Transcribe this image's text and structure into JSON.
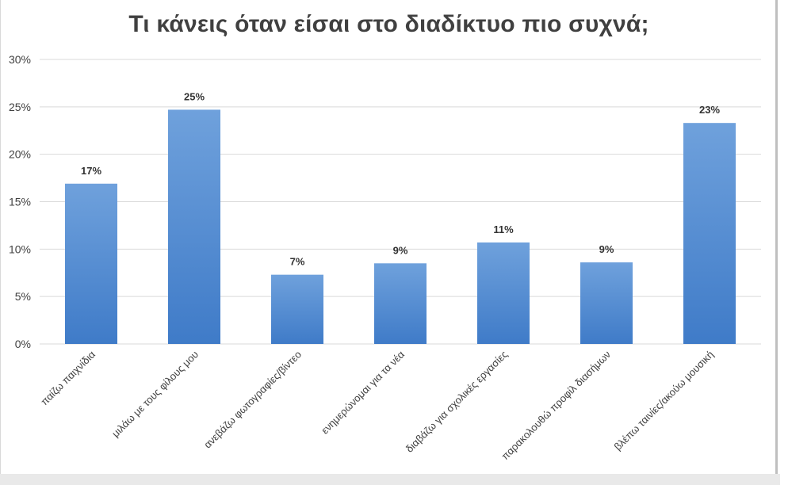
{
  "chart_data": {
    "type": "bar",
    "title": "Τι κάνεις όταν είσαι στο διαδίκτυο πιο συχνά;",
    "xlabel": "",
    "ylabel": "",
    "categories": [
      "παίζω παιχνίδια",
      "μιλάω με τους φίλους μου",
      "ανεβάζω φωτογραφίες/βίντεο",
      "ενημερώνομαι για τα νέα",
      "διαβάζω για σχολικές εργασίες",
      "παρακολουθώ προφίλ διασήμων",
      "βλέπω ταινίες/ακούω μουσική"
    ],
    "values": [
      17,
      25,
      7,
      9,
      11,
      9,
      23
    ],
    "value_heights": [
      16.9,
      24.7,
      7.3,
      8.5,
      10.7,
      8.6,
      23.3
    ],
    "data_labels": [
      "17%",
      "25%",
      "7%",
      "9%",
      "11%",
      "9%",
      "23%"
    ],
    "ylim": [
      0,
      30
    ],
    "yticks": [
      "0%",
      "5%",
      "10%",
      "15%",
      "20%",
      "25%",
      "30%"
    ],
    "grid": true,
    "legend": "none",
    "bar_color_top": "#6fa1dc",
    "bar_color_bottom": "#3f7bc8",
    "grid_color": "#d9d9d9"
  }
}
